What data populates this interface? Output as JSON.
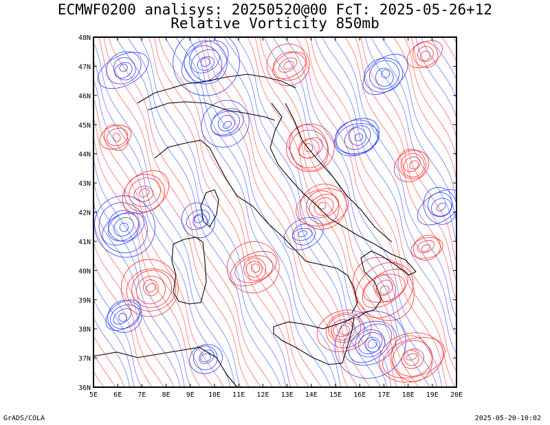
{
  "header": {
    "title_line1": "ECMWF0200 analisys: 20250520@00 FcT: 2025-05-26+12",
    "title_line2": "Relative Vorticity 850mb"
  },
  "map": {
    "lon_labels": [
      "5E",
      "6E",
      "7E",
      "8E",
      "9E",
      "10E",
      "11E",
      "12E",
      "13E",
      "14E",
      "15E",
      "16E",
      "17E",
      "18E",
      "19E",
      "20E"
    ],
    "lat_labels": [
      "48N",
      "47N",
      "46N",
      "45N",
      "44N",
      "43N",
      "42N",
      "41N",
      "40N",
      "39N",
      "38N",
      "37N",
      "36N"
    ],
    "colors": {
      "positive_vorticity": "#ff3b3b",
      "negative_vorticity": "#3b50ff",
      "frame": "#000000",
      "coastline": "#000000"
    }
  },
  "footer": {
    "left": "GrADS/COLA",
    "right": "2025-05-20-10:02"
  }
}
